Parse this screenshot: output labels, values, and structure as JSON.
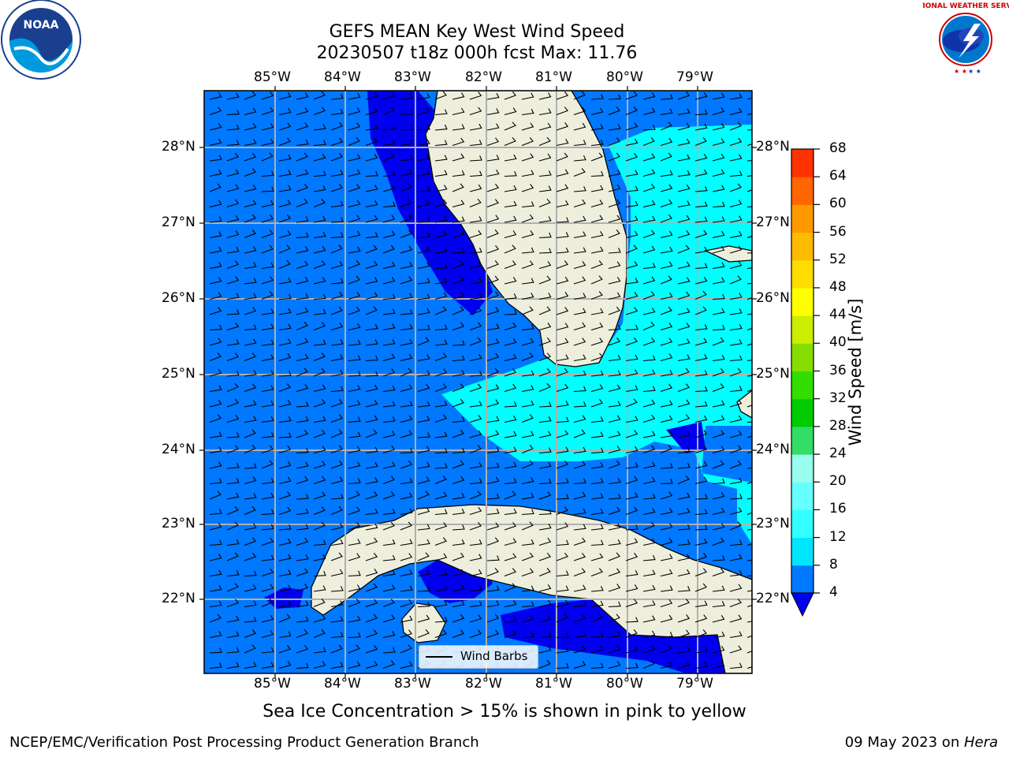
{
  "title": {
    "line1": "GEFS MEAN Key West Wind Speed",
    "line2": "20230507 t18z 000h fcst   Max: 11.76"
  },
  "subtitle": "Sea Ice Concentration > 15% is shown in pink to yellow",
  "footer": {
    "left": "NCEP/EMC/Verification Post Processing Product Generation Branch",
    "date": "09 May 2023 on ",
    "host": "Hera"
  },
  "legend": {
    "label": "Wind Barbs"
  },
  "logos": {
    "noaa": "NOAA",
    "nws": "NATIONAL WEATHER SERVICE"
  },
  "map": {
    "lon_ticks": [
      "85°W",
      "84°W",
      "83°W",
      "82°W",
      "81°W",
      "80°W",
      "79°W"
    ],
    "lat_ticks": [
      "28°N",
      "27°N",
      "26°N",
      "25°N",
      "24°N",
      "23°N",
      "22°N"
    ],
    "colors": {
      "land": "#eeeedd",
      "ocean_dark": "#0000ee",
      "ocean_mid": "#0078ff",
      "ocean_light": "#00ffff"
    }
  },
  "colorbar": {
    "label": "Wind Speed [m/s]",
    "levels": [
      "4",
      "8",
      "12",
      "16",
      "20",
      "24",
      "28",
      "32",
      "36",
      "40",
      "44",
      "48",
      "52",
      "56",
      "60",
      "64",
      "68"
    ],
    "colors": [
      "#0078ff",
      "#00e6ff",
      "#33ffff",
      "#66ffff",
      "#99ffee",
      "#33dd66",
      "#00cc00",
      "#33dd00",
      "#88dd00",
      "#ccee00",
      "#ffff00",
      "#ffdd00",
      "#ffbb00",
      "#ff9900",
      "#ff6600",
      "#ff3300"
    ],
    "under_color": "#0000ee"
  }
}
